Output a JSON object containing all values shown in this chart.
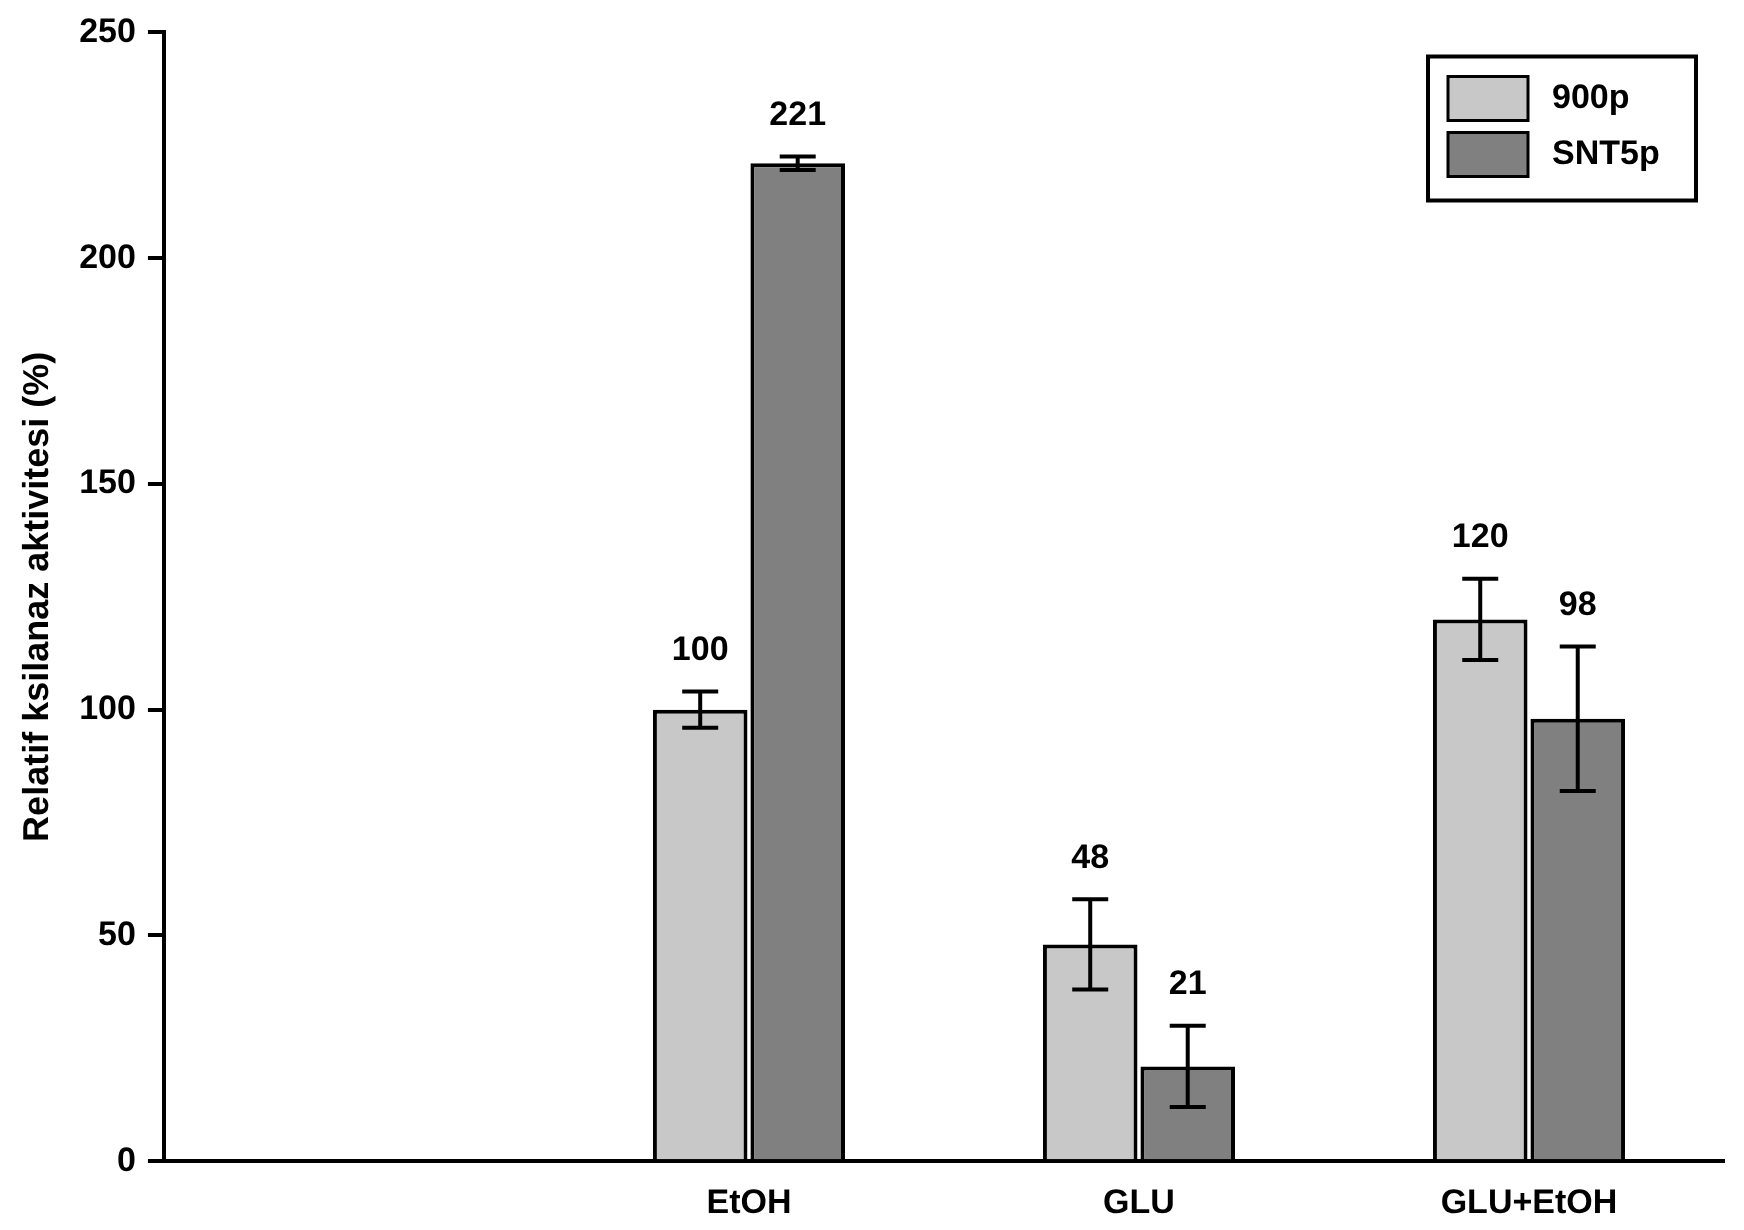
{
  "chart_data": {
    "type": "bar",
    "ylabel": "Relatif ksilanaz aktivitesi (%)",
    "categories": [
      null,
      "EtOH",
      "GLU",
      "GLU+EtOH"
    ],
    "series": [
      {
        "name": "900p",
        "color": "#c8c8c8",
        "values": [
          null,
          100,
          48,
          120
        ],
        "errors": [
          null,
          4,
          10,
          9
        ]
      },
      {
        "name": "SNT5p",
        "color": "#808080",
        "values": [
          null,
          221,
          21,
          98
        ],
        "errors": [
          null,
          1.5,
          9,
          16
        ]
      }
    ],
    "ylim": [
      0,
      250
    ],
    "yticks": [
      0,
      50,
      100,
      150,
      200,
      250
    ],
    "grid": false,
    "legend": "top right",
    "data_labels": true
  }
}
